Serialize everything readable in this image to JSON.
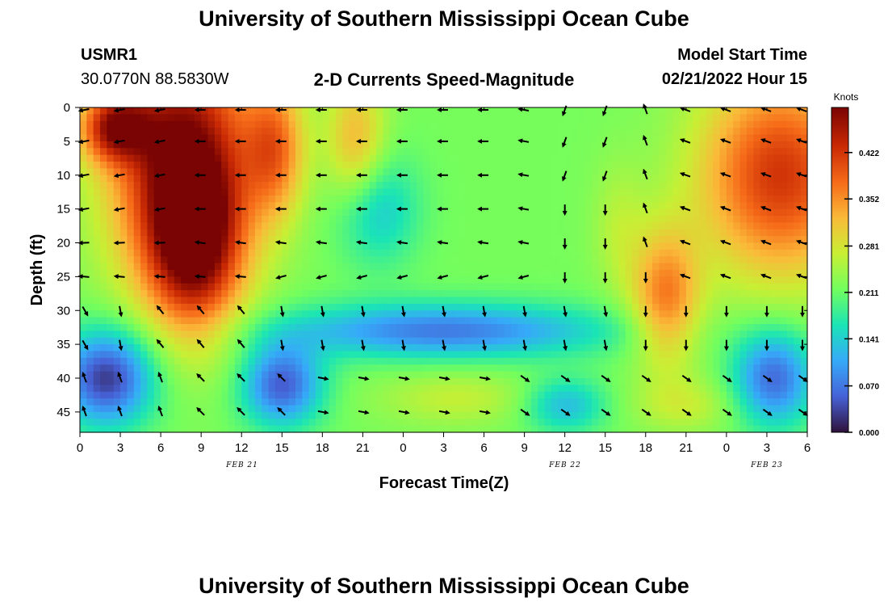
{
  "header": {
    "title": "University of Southern Mississippi Ocean Cube",
    "station": "USMR1",
    "location": "30.0770N  88.5830W",
    "subtitle": "2-D Currents Speed-Magnitude",
    "model_label": "Model Start Time",
    "model_time": "02/21/2022 Hour 15"
  },
  "footer": {
    "title": "University of Southern Mississippi Ocean Cube"
  },
  "chart_data": {
    "type": "heatmap",
    "xlabel": "Forecast Time(Z)",
    "ylabel": "Depth (ft)",
    "x_ticks": [
      "0",
      "3",
      "6",
      "9",
      "12",
      "15",
      "18",
      "21",
      "0",
      "3",
      "6",
      "9",
      "12",
      "15",
      "18",
      "21",
      "0",
      "3",
      "6"
    ],
    "date_labels": [
      "FEB 21",
      "FEB 22",
      "FEB 23"
    ],
    "y_ticks": [
      "0",
      "5",
      "10",
      "15",
      "20",
      "25",
      "30",
      "35",
      "40",
      "45"
    ],
    "ylim": [
      0,
      48
    ],
    "colorbar": {
      "label": "Knots",
      "ticks": [
        "0.000",
        "0.070",
        "0.141",
        "0.211",
        "0.281",
        "0.352",
        "0.422"
      ],
      "range": [
        0,
        0.49
      ]
    },
    "arrow_depths_ft": [
      0,
      5,
      10,
      15,
      20,
      25,
      30,
      35,
      40,
      45
    ],
    "arrow_times_hr": [
      0,
      3,
      6,
      9,
      12,
      15,
      18,
      21,
      24,
      27,
      30,
      33,
      36,
      39,
      42,
      45,
      48,
      51,
      54
    ]
  },
  "colors": {
    "scale": [
      "#30123b",
      "#4662d7",
      "#36aaf9",
      "#1ae4b6",
      "#72fe5e",
      "#c8ef34",
      "#faba39",
      "#f66b19",
      "#ca2a04",
      "#7a0403"
    ]
  }
}
